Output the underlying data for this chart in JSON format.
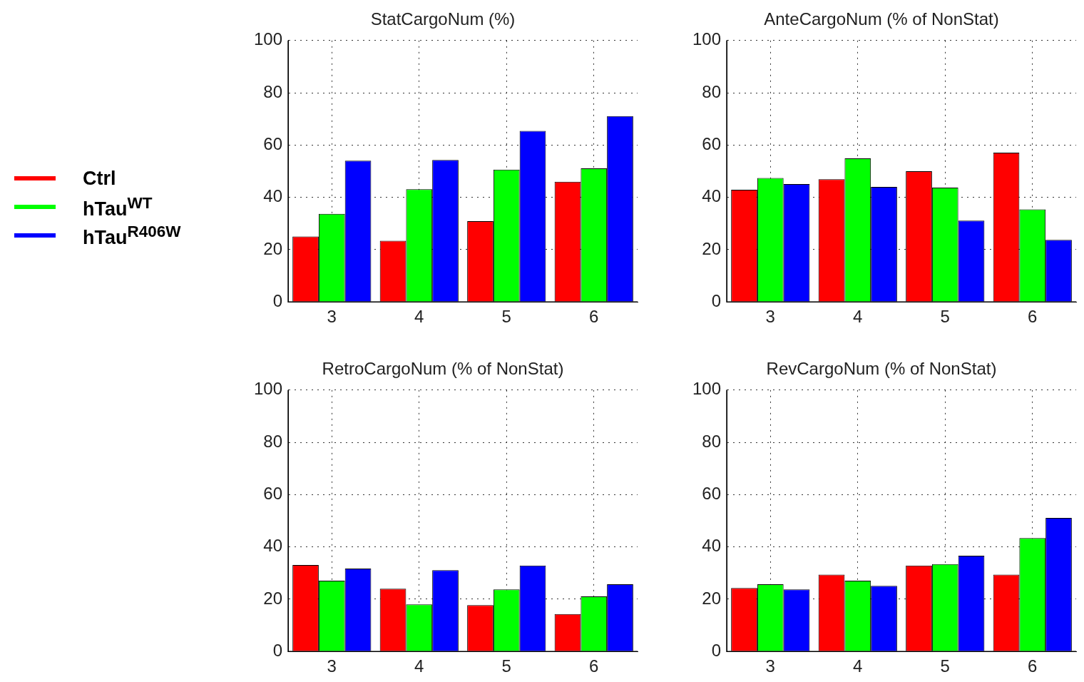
{
  "chart_data": [
    {
      "type": "bar",
      "title": "StatCargoNum (%)",
      "categories": [
        "3",
        "4",
        "5",
        "6"
      ],
      "series": [
        {
          "name": "Ctrl",
          "color": "#ff0000",
          "values": [
            25,
            23.4,
            30.9,
            46
          ]
        },
        {
          "name": "hTau$^{WT}$",
          "color": "#00ff00",
          "values": [
            33.7,
            43.1,
            50.6,
            51.1
          ]
        },
        {
          "name": "hTau$^{R406W}$",
          "color": "#0000ff",
          "values": [
            54,
            54.3,
            65.4,
            71.1
          ]
        }
      ],
      "ylim": [
        0,
        100
      ],
      "yticks": [
        0,
        20,
        40,
        60,
        80,
        100
      ],
      "grid": true,
      "legend": "left"
    },
    {
      "type": "bar",
      "title": "AnteCargoNum (% of NonStat)",
      "categories": [
        "3",
        "4",
        "5",
        "6"
      ],
      "series": [
        {
          "color": "#ff0000",
          "values": [
            42.9,
            46.9,
            50,
            57.1
          ]
        },
        {
          "color": "#00ff00",
          "values": [
            47.4,
            54.9,
            43.7,
            35.4
          ]
        },
        {
          "color": "#0000ff",
          "values": [
            45.1,
            44,
            31.1,
            23.7
          ]
        }
      ],
      "ylim": [
        0,
        100
      ],
      "yticks": [
        0,
        20,
        40,
        60,
        80,
        100
      ],
      "grid": true
    },
    {
      "type": "bar",
      "title": "RetroCargoNum (% of NonStat)",
      "categories": [
        "3",
        "4",
        "5",
        "6"
      ],
      "series": [
        {
          "color": "#ff0000",
          "values": [
            33.1,
            24,
            17.7,
            14.3
          ]
        },
        {
          "color": "#00ff00",
          "values": [
            27.1,
            18,
            23.7,
            21.1
          ]
        },
        {
          "color": "#0000ff",
          "values": [
            31.7,
            31.1,
            32.9,
            25.7
          ]
        }
      ],
      "ylim": [
        0,
        100
      ],
      "yticks": [
        0,
        20,
        40,
        60,
        80,
        100
      ],
      "grid": true
    },
    {
      "type": "bar",
      "title": "RevCargoNum (% of NonStat)",
      "categories": [
        "3",
        "4",
        "5",
        "6"
      ],
      "series": [
        {
          "color": "#ff0000",
          "values": [
            24.3,
            29.4,
            32.9,
            29.4
          ]
        },
        {
          "color": "#00ff00",
          "values": [
            25.7,
            27.1,
            33.4,
            43.4
          ]
        },
        {
          "color": "#0000ff",
          "values": [
            23.7,
            25.1,
            36.6,
            51.1
          ]
        }
      ],
      "ylim": [
        0,
        100
      ],
      "yticks": [
        0,
        20,
        40,
        60,
        80,
        100
      ],
      "grid": true
    }
  ]
}
